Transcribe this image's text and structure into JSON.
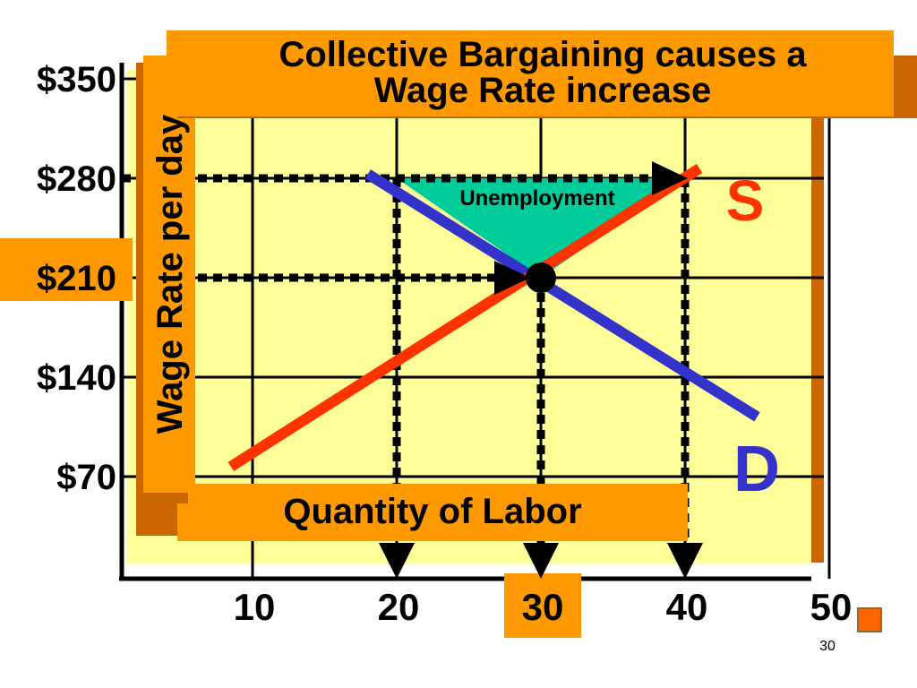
{
  "slide": {
    "title_line1": "Collective Bargaining causes a",
    "title_line2": "Wage Rate increase",
    "page_number": "30",
    "colors": {
      "background": "#ffffff",
      "plot_fill": "#ffff99",
      "label_box": "#ff9900",
      "shadow": "#cc6600",
      "supply": "#ff3300",
      "demand": "#3333cc",
      "unemployment": "#00cc99",
      "bullet": "#ff6600"
    },
    "icons": [
      "square-bullet-icon",
      "arrow-down-icon",
      "arrow-right-icon",
      "equilibrium-dot-icon"
    ]
  },
  "chart_data": {
    "type": "line",
    "title": "Collective Bargaining causes a Wage Rate increase",
    "xlabel": "Quantity of Labor",
    "ylabel": "Wage Rate per day",
    "x_ticks": [
      "10",
      "20",
      "30",
      "40",
      "50"
    ],
    "x_tick_values": [
      10,
      20,
      30,
      40,
      50
    ],
    "y_ticks": [
      "$70",
      "$140",
      "$210",
      "$280",
      "$350"
    ],
    "y_tick_values": [
      70,
      140,
      210,
      280,
      350
    ],
    "highlighted_ticks": {
      "x": "30",
      "y": "$210"
    },
    "xlim": [
      1,
      51
    ],
    "ylim": [
      0,
      350
    ],
    "grid": true,
    "series": [
      {
        "name": "S",
        "color": "#ff3300",
        "x": [
          8.5,
          41
        ],
        "y": [
          77,
          287
        ]
      },
      {
        "name": "D",
        "color": "#3333cc",
        "x": [
          18,
          45
        ],
        "y": [
          283,
          112
        ]
      }
    ],
    "equilibrium": {
      "x": 30,
      "y": 210
    },
    "union_wage": 280,
    "union_wage_quantity_demanded": 20,
    "union_wage_quantity_supplied": 40,
    "annotations": [
      {
        "text": "Unemployment",
        "x1": 20,
        "x2": 40,
        "y_top": 280,
        "y_bottom": 210
      }
    ],
    "legend_position": "right of lines"
  }
}
